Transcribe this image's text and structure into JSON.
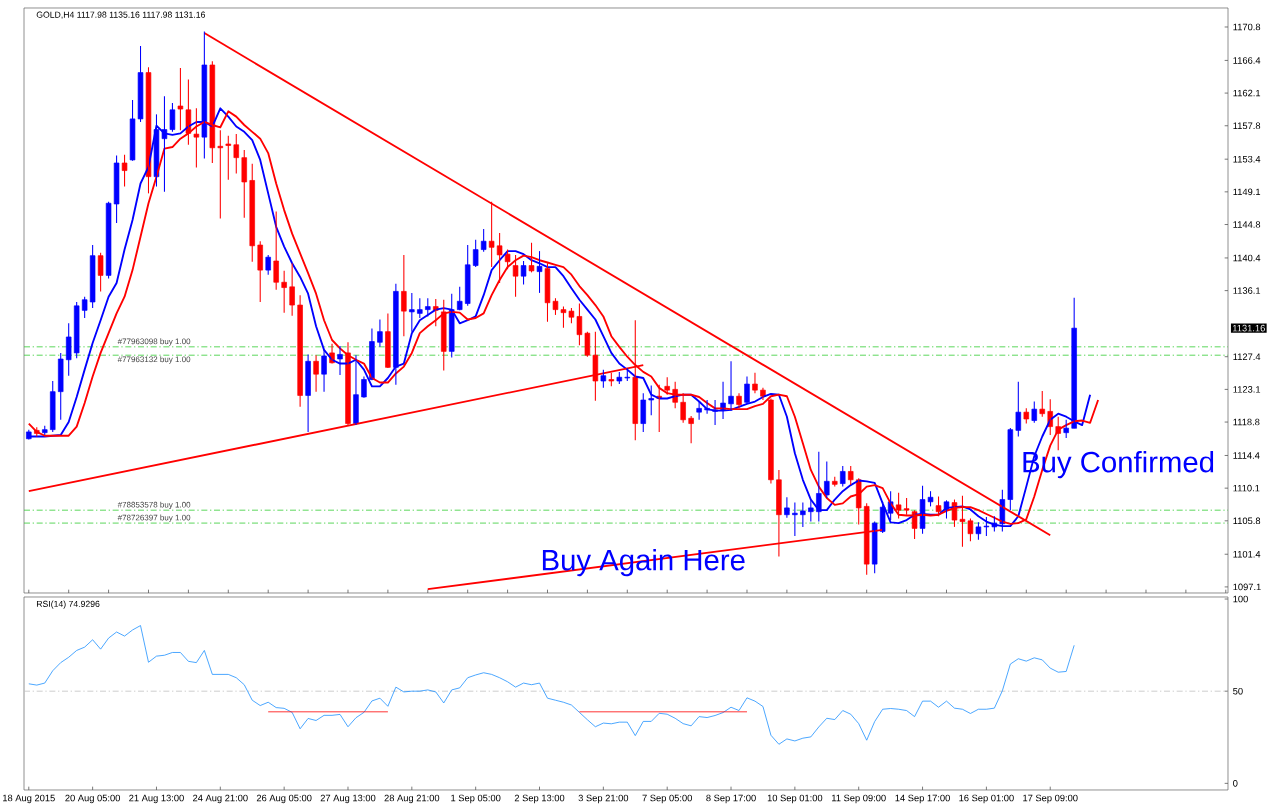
{
  "chart_data": [
    {
      "type": "candlestick",
      "title": "GOLD,H4 1117.98 1135.16 1117.98 1131.16",
      "categories": [
        null,
        null,
        null,
        null,
        null,
        null,
        null,
        null,
        null,
        null,
        null,
        null,
        null,
        null,
        null,
        null,
        null,
        null,
        null,
        null,
        null,
        null,
        null,
        null,
        null,
        null,
        null,
        null,
        null,
        null,
        null,
        null,
        null,
        null,
        null,
        null,
        null,
        null,
        null,
        null,
        null,
        null,
        null,
        null,
        null,
        null,
        null,
        null,
        null,
        null,
        null,
        null,
        null,
        null,
        null,
        null,
        null,
        null,
        null,
        null,
        null,
        null,
        null,
        null,
        null,
        null,
        null,
        null,
        null,
        null,
        null,
        null,
        null,
        null,
        null,
        null,
        null,
        null,
        null,
        null,
        null,
        null,
        null,
        null,
        null,
        null,
        null,
        null,
        null,
        null,
        null,
        null,
        null,
        null,
        null,
        null,
        null,
        null,
        null,
        null,
        null,
        null,
        null,
        null,
        null,
        null,
        null,
        null,
        null,
        null,
        null,
        null,
        null,
        null,
        null,
        null,
        null,
        null,
        null,
        null,
        null,
        null,
        null,
        null,
        null,
        null,
        null,
        null,
        null,
        null,
        null,
        null,
        null,
        null,
        null
      ],
      "ohlc": [
        [
          1116.6,
          1117.8,
          1116.5,
          1117.5
        ],
        [
          1117.7,
          1118.1,
          1116.9,
          1117.3
        ],
        [
          1117.4,
          1118.3,
          1117.1,
          1117.8
        ],
        [
          1117.8,
          1124.2,
          1117.5,
          1122.8
        ],
        [
          1122.8,
          1127.9,
          1119.1,
          1127.1
        ],
        [
          1127.0,
          1131.8,
          1124.9,
          1130.0
        ],
        [
          1127.9,
          1134.6,
          1127.2,
          1134.1
        ],
        [
          1133.5,
          1135.3,
          1132.5,
          1134.9
        ],
        [
          1134.6,
          1142.1,
          1133.8,
          1140.7
        ],
        [
          1140.7,
          1141.1,
          1136.0,
          1138.1
        ],
        [
          1138.1,
          1147.8,
          1137.7,
          1147.6
        ],
        [
          1147.5,
          1153.9,
          1145.0,
          1152.9
        ],
        [
          1152.9,
          1154.0,
          1149.8,
          1151.9
        ],
        [
          1153.3,
          1161.2,
          1153.2,
          1158.7
        ],
        [
          1158.7,
          1168.3,
          1158.3,
          1164.8
        ],
        [
          1164.8,
          1165.5,
          1148.9,
          1151.1
        ],
        [
          1151.1,
          1159.3,
          1149.8,
          1157.3
        ],
        [
          1156.1,
          1161.7,
          1149.1,
          1157.3
        ],
        [
          1157.3,
          1160.8,
          1157.0,
          1159.9
        ],
        [
          1160.4,
          1165.4,
          1157.2,
          1160.0
        ],
        [
          1159.9,
          1163.9,
          1155.3,
          1156.8
        ],
        [
          1156.7,
          1160.1,
          1152.3,
          1156.3
        ],
        [
          1156.3,
          1170.2,
          1153.5,
          1165.8
        ],
        [
          1165.8,
          1166.3,
          1152.9,
          1154.9
        ],
        [
          1155.1,
          1157.2,
          1145.6,
          1154.9
        ],
        [
          1155.4,
          1156.5,
          1150.7,
          1155.2
        ],
        [
          1155.3,
          1156.7,
          1151.5,
          1153.6
        ],
        [
          1153.6,
          1154.6,
          1145.7,
          1150.4
        ],
        [
          1150.6,
          1152.8,
          1139.9,
          1142.0
        ],
        [
          1142.1,
          1142.6,
          1134.6,
          1138.8
        ],
        [
          1138.8,
          1140.8,
          1138.2,
          1140.5
        ],
        [
          1140.0,
          1146.5,
          1136.2,
          1137.2
        ],
        [
          1137.2,
          1138.7,
          1133.2,
          1136.5
        ],
        [
          1136.6,
          1139.7,
          1132.8,
          1134.2
        ],
        [
          1134.2,
          1135.5,
          1120.8,
          1122.3
        ],
        [
          1122.3,
          1127.7,
          1117.5,
          1126.8
        ],
        [
          1126.8,
          1127.6,
          1122.8,
          1125.1
        ],
        [
          1125.1,
          1128.3,
          1122.8,
          1127.5
        ],
        [
          1127.9,
          1129.1,
          1126.5,
          1126.6
        ],
        [
          1127.1,
          1128.8,
          1125.0,
          1127.7
        ],
        [
          1127.9,
          1129.3,
          1118.4,
          1118.6
        ],
        [
          1118.6,
          1127.6,
          1118.4,
          1122.4
        ],
        [
          1122.1,
          1124.8,
          1122.0,
          1124.4
        ],
        [
          1124.4,
          1131.1,
          1124.3,
          1129.4
        ],
        [
          1129.3,
          1132.3,
          1128.7,
          1130.7
        ],
        [
          1130.7,
          1133.1,
          1125.9,
          1126.0
        ],
        [
          1126.0,
          1137.0,
          1123.7,
          1136.0
        ],
        [
          1136.0,
          1140.8,
          1130.1,
          1133.4
        ],
        [
          1133.3,
          1135.8,
          1130.7,
          1133.6
        ],
        [
          1133.1,
          1135.1,
          1132.5,
          1133.6
        ],
        [
          1133.6,
          1135.1,
          1132.7,
          1134.0
        ],
        [
          1134.0,
          1135.0,
          1131.4,
          1133.5
        ],
        [
          1133.3,
          1134.9,
          1125.6,
          1128.1
        ],
        [
          1128.1,
          1135.7,
          1127.3,
          1133.6
        ],
        [
          1133.6,
          1136.6,
          1133.5,
          1134.7
        ],
        [
          1134.4,
          1142.1,
          1134.1,
          1139.5
        ],
        [
          1139.4,
          1142.8,
          1139.2,
          1141.5
        ],
        [
          1141.5,
          1144.2,
          1141.2,
          1142.6
        ],
        [
          1142.6,
          1147.8,
          1139.2,
          1141.8
        ],
        [
          1142.0,
          1143.7,
          1137.1,
          1140.8
        ],
        [
          1140.9,
          1141.5,
          1138.9,
          1139.9
        ],
        [
          1139.4,
          1140.8,
          1135.3,
          1138.0
        ],
        [
          1138.0,
          1140.0,
          1136.9,
          1139.4
        ],
        [
          1139.4,
          1142.4,
          1138.5,
          1138.7
        ],
        [
          1138.6,
          1141.3,
          1135.8,
          1139.3
        ],
        [
          1139.0,
          1139.7,
          1132.0,
          1134.5
        ],
        [
          1134.7,
          1135.1,
          1132.9,
          1133.6
        ],
        [
          1133.6,
          1134.0,
          1131.2,
          1133.2
        ],
        [
          1133.4,
          1133.8,
          1131.8,
          1132.6
        ],
        [
          1132.7,
          1134.4,
          1128.9,
          1130.3
        ],
        [
          1130.5,
          1130.7,
          1127.4,
          1127.6
        ],
        [
          1127.6,
          1130.7,
          1121.6,
          1124.2
        ],
        [
          1124.2,
          1125.7,
          1123.3,
          1124.9
        ],
        [
          1124.4,
          1125.3,
          1123.5,
          1124.2
        ],
        [
          1124.2,
          1125.4,
          1123.8,
          1124.7
        ],
        [
          1124.6,
          1125.9,
          1124.2,
          1124.7
        ],
        [
          1124.7,
          1132.2,
          1116.4,
          1118.6
        ],
        [
          1118.6,
          1122.6,
          1117.5,
          1121.7
        ],
        [
          1121.7,
          1123.6,
          1119.7,
          1121.9
        ],
        [
          1122.2,
          1123.7,
          1117.5,
          1121.9
        ],
        [
          1123.5,
          1124.7,
          1122.4,
          1123.0
        ],
        [
          1123.1,
          1124.1,
          1120.6,
          1121.4
        ],
        [
          1121.4,
          1122.6,
          1118.7,
          1119.1
        ],
        [
          1119.3,
          1119.6,
          1116.0,
          1118.6
        ],
        [
          1120.1,
          1121.5,
          1119.1,
          1120.6
        ],
        [
          1120.4,
          1121.7,
          1119.9,
          1120.6
        ],
        [
          1120.2,
          1121.7,
          1118.4,
          1120.4
        ],
        [
          1120.4,
          1124.1,
          1119.2,
          1121.3
        ],
        [
          1121.2,
          1126.8,
          1120.3,
          1122.2
        ],
        [
          1122.2,
          1122.6,
          1120.6,
          1121.1
        ],
        [
          1121.4,
          1124.8,
          1121.3,
          1123.8
        ],
        [
          1123.8,
          1125.3,
          1122.6,
          1123.0
        ],
        [
          1123.0,
          1123.3,
          1121.7,
          1122.2
        ],
        [
          1121.7,
          1121.9,
          1110.7,
          1111.2
        ],
        [
          1111.2,
          1112.5,
          1101.1,
          1106.6
        ],
        [
          1106.6,
          1108.9,
          1106.2,
          1107.5
        ],
        [
          1106.6,
          1108.2,
          1103.8,
          1106.8
        ],
        [
          1106.6,
          1108.2,
          1105.0,
          1107.1
        ],
        [
          1107.0,
          1108.6,
          1105.7,
          1107.5
        ],
        [
          1107.0,
          1114.9,
          1105.7,
          1109.4
        ],
        [
          1109.2,
          1113.6,
          1108.8,
          1111.0
        ],
        [
          1111.0,
          1111.6,
          1110.3,
          1110.6
        ],
        [
          1110.7,
          1113.0,
          1110.3,
          1112.3
        ],
        [
          1112.3,
          1113.0,
          1110.5,
          1111.2
        ],
        [
          1111.2,
          1111.4,
          1105.3,
          1107.5
        ],
        [
          1107.7,
          1108.1,
          1098.7,
          1100.1
        ],
        [
          1100.1,
          1105.7,
          1098.9,
          1105.5
        ],
        [
          1104.4,
          1108.3,
          1104.2,
          1107.6
        ],
        [
          1106.8,
          1109.7,
          1105.9,
          1108.3
        ],
        [
          1107.9,
          1109.5,
          1106.1,
          1107.2
        ],
        [
          1107.4,
          1108.8,
          1106.6,
          1107.2
        ],
        [
          1107.0,
          1107.2,
          1103.4,
          1104.8
        ],
        [
          1104.8,
          1110.4,
          1104.1,
          1108.6
        ],
        [
          1108.3,
          1109.7,
          1107.7,
          1108.9
        ],
        [
          1107.8,
          1109.0,
          1106.4,
          1107.0
        ],
        [
          1107.2,
          1108.5,
          1106.1,
          1108.3
        ],
        [
          1108.2,
          1108.6,
          1105.0,
          1105.9
        ],
        [
          1106.0,
          1109.1,
          1102.4,
          1105.7
        ],
        [
          1105.8,
          1106.1,
          1103.1,
          1104.1
        ],
        [
          1104.1,
          1105.6,
          1103.3,
          1105.0
        ],
        [
          1105.0,
          1106.3,
          1103.8,
          1105.1
        ],
        [
          1105.0,
          1106.4,
          1104.4,
          1105.5
        ],
        [
          1105.4,
          1109.9,
          1104.4,
          1108.6
        ],
        [
          1108.6,
          1118.0,
          1107.2,
          1117.8
        ],
        [
          1117.7,
          1124.1,
          1116.9,
          1120.1
        ],
        [
          1120.1,
          1120.6,
          1118.6,
          1119.2
        ],
        [
          1119.0,
          1121.5,
          1118.7,
          1120.5
        ],
        [
          1120.5,
          1122.9,
          1119.5,
          1119.9
        ],
        [
          1120.2,
          1121.8,
          1117.1,
          1118.2
        ],
        [
          1118.2,
          1119.5,
          1115.1,
          1117.3
        ],
        [
          1117.4,
          1119.1,
          1116.7,
          1118.0
        ],
        [
          1117.98,
          1135.16,
          1117.98,
          1131.16
        ],
        null,
        null,
        null
      ],
      "series": [
        {
          "type": "line",
          "color": "#0000ff",
          "values": [
            1116.9,
            1116.9,
            1116.9,
            1117.0,
            1117.1,
            1118.8,
            1122.1,
            1125.7,
            1129.2,
            1132.2,
            1135.3,
            1137.1,
            1141.5,
            1145.4,
            1150.2,
            1152.4,
            1157.8,
            1156.8,
            1156.6,
            1156.8,
            1157.7,
            1158.3,
            1158.3,
            1157.7,
            1160.1,
            1159.0,
            1157.7,
            1157.0,
            1155.9,
            1153.3,
            1148.9,
            1144.5,
            1141.9,
            1139.7,
            1137.9,
            1135.7,
            1131.4,
            1128.3,
            1127.0,
            1126.5,
            1126.5,
            1127.0,
            1125.7,
            1123.5,
            1123.5,
            1124.6,
            1126.1,
            1126.5,
            1130.5,
            1132.2,
            1132.9,
            1133.6,
            1133.8,
            1133.6,
            1131.8,
            1132.2,
            1132.7,
            1135.5,
            1138.8,
            1140.1,
            1141.3,
            1141.3,
            1140.9,
            1140.1,
            1139.7,
            1139.2,
            1139.2,
            1138.0,
            1136.4,
            1134.9,
            1133.6,
            1132.3,
            1130.1,
            1127.9,
            1126.5,
            1125.7,
            1124.8,
            1124.6,
            1122.4,
            1121.9,
            1121.9,
            1122.2,
            1122.4,
            1122.4,
            1121.5,
            1120.5,
            1120.3,
            1120.3,
            1120.4,
            1120.8,
            1121.2,
            1121.5,
            1122.1,
            1122.5,
            1122.4,
            1119.5,
            1114.7,
            1111.2,
            1108.6,
            1107.2,
            1107.2,
            1108.6,
            1109.7,
            1110.5,
            1111.1,
            1111.0,
            1110.8,
            1108.1,
            1105.6,
            1105.5,
            1105.9,
            1106.6,
            1106.7,
            1106.6,
            1106.6,
            1107.5,
            1107.6,
            1107.7,
            1107.3,
            1106.4,
            1105.7,
            1105.3,
            1105.1,
            1105.1,
            1106.4,
            1110.3,
            1114.3,
            1116.9,
            1119.1,
            1119.9,
            1119.5,
            1118.9,
            1118.4,
            1122.4,
            null
          ]
        },
        {
          "type": "line",
          "color": "#ff0000",
          "values": [
            1118.6,
            1117.5,
            1117.0,
            1117.0,
            1117.0,
            1117.0,
            1118.2,
            1121.3,
            1124.8,
            1127.9,
            1130.5,
            1133.1,
            1135.3,
            1138.8,
            1143.2,
            1147.6,
            1151.1,
            1154.8,
            1155.0,
            1156.1,
            1156.8,
            1157.7,
            1158.3,
            1157.9,
            1157.6,
            1159.7,
            1159.0,
            1157.9,
            1157.0,
            1156.1,
            1154.2,
            1150.2,
            1146.7,
            1143.6,
            1141.0,
            1138.4,
            1135.7,
            1132.2,
            1129.6,
            1128.5,
            1127.6,
            1127.0,
            1126.5,
            1124.6,
            1124.0,
            1124.0,
            1125.2,
            1126.1,
            1127.9,
            1130.5,
            1131.4,
            1132.2,
            1133.1,
            1133.3,
            1133.2,
            1132.3,
            1132.5,
            1133.1,
            1135.5,
            1137.5,
            1139.2,
            1140.1,
            1140.7,
            1140.5,
            1140.1,
            1139.8,
            1139.5,
            1139.2,
            1138.2,
            1136.7,
            1135.5,
            1134.2,
            1132.7,
            1130.1,
            1128.7,
            1127.4,
            1126.3,
            1125.4,
            1124.8,
            1123.3,
            1122.6,
            1122.4,
            1122.4,
            1122.4,
            1122.1,
            1121.3,
            1120.6,
            1120.6,
            1120.5,
            1120.5,
            1120.5,
            1120.9,
            1121.2,
            1122.2,
            1122.4,
            1122.2,
            1119.5,
            1116.0,
            1112.5,
            1110.3,
            1108.8,
            1107.9,
            1108.1,
            1109.0,
            1109.3,
            1110.3,
            1110.5,
            1110.1,
            1108.1,
            1106.6,
            1106.5,
            1106.5,
            1106.6,
            1106.5,
            1106.6,
            1107.1,
            1107.5,
            1107.6,
            1107.6,
            1107.2,
            1106.7,
            1106.2,
            1105.7,
            1105.4,
            1105.5,
            1106.0,
            1109.0,
            1112.5,
            1115.7,
            1117.8,
            1118.4,
            1118.9,
            1119.0,
            1118.7,
            1121.7
          ]
        },
        {
          "type": "line",
          "color": "#ff0000",
          "values": [
            null,
            null,
            null,
            null,
            null,
            null,
            null,
            null,
            null,
            null,
            null,
            null,
            null,
            null,
            null,
            null,
            null,
            null,
            null,
            null,
            null,
            null,
            1170.0,
            null,
            null,
            null,
            null,
            null,
            null,
            null,
            null,
            null,
            null,
            null,
            null,
            null,
            null,
            null,
            null,
            null,
            null,
            null,
            null,
            null,
            null,
            null,
            null,
            null,
            null,
            null,
            null,
            null,
            null,
            null,
            null,
            null,
            null,
            null,
            null,
            null,
            null,
            null,
            null,
            null,
            null,
            null,
            null,
            null,
            null,
            null,
            null,
            null,
            null,
            null,
            null,
            null,
            null,
            null,
            null,
            null,
            null,
            null,
            null,
            null,
            null,
            null,
            null,
            null,
            null,
            null,
            null,
            null,
            null,
            null,
            null,
            null,
            null,
            null,
            null,
            null,
            null,
            null,
            null,
            null,
            null,
            null,
            null,
            null,
            null,
            null,
            null,
            null,
            null,
            null,
            null,
            null,
            null,
            null,
            null,
            null,
            null,
            null,
            null,
            null,
            null,
            null,
            null,
            null,
            1103.9,
            null,
            null,
            null,
            null,
            null,
            null
          ]
        },
        {
          "type": "line",
          "color": "#ff0000",
          "values": [
            1109.7,
            null,
            null,
            null,
            null,
            null,
            null,
            null,
            null,
            null,
            null,
            null,
            null,
            null,
            null,
            null,
            null,
            null,
            null,
            null,
            null,
            null,
            null,
            null,
            null,
            null,
            null,
            null,
            null,
            null,
            null,
            null,
            null,
            null,
            null,
            null,
            null,
            null,
            null,
            null,
            null,
            null,
            null,
            null,
            null,
            null,
            null,
            null,
            null,
            null,
            null,
            null,
            null,
            null,
            null,
            null,
            null,
            null,
            null,
            null,
            null,
            null,
            null,
            null,
            null,
            null,
            null,
            null,
            null,
            null,
            null,
            null,
            null,
            null,
            null,
            null,
            null,
            1126.3,
            null,
            null,
            null,
            null,
            null,
            null,
            null,
            null,
            null,
            null,
            null,
            null,
            null,
            null,
            null,
            null,
            null,
            null,
            null,
            null,
            null,
            null,
            null,
            null,
            null,
            null,
            null,
            null,
            null,
            null,
            null,
            null,
            null,
            null,
            null,
            null,
            null,
            null,
            null,
            null,
            null,
            null,
            null,
            null,
            null,
            null,
            null,
            null,
            null,
            null,
            null,
            null,
            null,
            null,
            null,
            null,
            null
          ]
        },
        {
          "type": "line",
          "color": "#ff0000",
          "values": [
            null,
            null,
            null,
            null,
            null,
            null,
            null,
            null,
            null,
            null,
            null,
            null,
            null,
            null,
            null,
            null,
            null,
            null,
            null,
            null,
            null,
            null,
            null,
            null,
            null,
            null,
            null,
            null,
            null,
            null,
            null,
            null,
            null,
            null,
            null,
            null,
            null,
            null,
            null,
            null,
            null,
            null,
            null,
            null,
            null,
            null,
            null,
            null,
            null,
            null,
            1096.8,
            null,
            null,
            null,
            null,
            null,
            null,
            null,
            null,
            null,
            null,
            null,
            null,
            null,
            null,
            null,
            null,
            null,
            null,
            null,
            null,
            null,
            null,
            null,
            null,
            null,
            null,
            null,
            null,
            null,
            null,
            null,
            null,
            null,
            null,
            null,
            null,
            null,
            null,
            null,
            null,
            null,
            null,
            null,
            null,
            null,
            null,
            null,
            null,
            null,
            null,
            null,
            null,
            null,
            null,
            null,
            null,
            1104.6,
            null,
            null,
            null,
            null,
            null,
            null,
            null,
            null,
            null,
            null,
            null,
            null,
            null,
            null,
            null,
            null,
            null,
            null,
            null,
            null,
            null,
            null,
            null,
            null,
            null,
            null,
            null
          ]
        }
      ],
      "ylim": [
        1096.3,
        1173.3
      ],
      "yticks": [
        1097.1,
        1101.4,
        1105.8,
        1110.1,
        1114.4,
        1118.8,
        1123.1,
        1127.4,
        1136.1,
        1140.4,
        1144.8,
        1149.1,
        1153.4,
        1157.8,
        1162.1,
        1166.4,
        1170.8
      ],
      "ref_lines": [
        {
          "axis": "y",
          "value": 1128.7,
          "label": "#77963098 buy 1.00",
          "color": "#32cd32",
          "line_style": "dashed"
        },
        {
          "axis": "y",
          "value": 1127.6,
          "label": "#77963132 buy 1.00",
          "color": "#32cd32",
          "line_style": "dashed"
        },
        {
          "axis": "y",
          "value": 1107.2,
          "label": "#78853578 buy 1.00",
          "color": "#32cd32",
          "line_style": "dashed"
        },
        {
          "axis": "y",
          "value": 1105.5,
          "label": "#78726397 buy 1.00",
          "color": "#32cd32",
          "line_style": "dashed"
        }
      ],
      "annotations": [
        "Buy Again Here",
        "Buy Confirmed",
        "1131.16"
      ],
      "tick_labels": "y"
    },
    {
      "type": "line",
      "title": "RSI(14) 74.9296",
      "categories": [
        "18 Aug 2015",
        null,
        null,
        null,
        null,
        null,
        null,
        null,
        "20 Aug 05:00",
        null,
        null,
        null,
        null,
        null,
        null,
        null,
        "21 Aug 13:00",
        null,
        null,
        null,
        null,
        null,
        null,
        null,
        "24 Aug 21:00",
        null,
        null,
        null,
        null,
        null,
        null,
        null,
        "26 Aug 05:00",
        null,
        null,
        null,
        null,
        null,
        null,
        null,
        "27 Aug 13:00",
        null,
        null,
        null,
        null,
        null,
        null,
        null,
        "28 Aug 21:00",
        null,
        null,
        null,
        null,
        null,
        null,
        null,
        "1 Sep 05:00",
        null,
        null,
        null,
        null,
        null,
        null,
        null,
        "2 Sep 13:00",
        null,
        null,
        null,
        null,
        null,
        null,
        null,
        "3 Sep 21:00",
        null,
        null,
        null,
        null,
        null,
        null,
        null,
        "7 Sep 05:00",
        null,
        null,
        null,
        null,
        null,
        null,
        null,
        "8 Sep 17:00",
        null,
        null,
        null,
        null,
        null,
        null,
        null,
        "10 Sep 01:00",
        null,
        null,
        null,
        null,
        null,
        null,
        null,
        "11 Sep 09:00",
        null,
        null,
        null,
        null,
        null,
        null,
        null,
        "14 Sep 17:00",
        null,
        null,
        null,
        null,
        null,
        null,
        null,
        "16 Sep 01:00",
        null,
        null,
        null,
        null,
        null,
        null,
        null,
        "17 Sep 09:00",
        null,
        null,
        null,
        null,
        null,
        null
      ],
      "series": [
        {
          "color": "#1e90ff",
          "values": [
            54.0,
            53.3,
            54.4,
            61.1,
            65.5,
            68.4,
            72.1,
            73.9,
            77.9,
            72.8,
            78.8,
            82.1,
            79.9,
            83.2,
            85.6,
            65.7,
            69.0,
            69.5,
            71.0,
            71.0,
            66.2,
            65.5,
            72.1,
            59.1,
            59.1,
            59.1,
            57.3,
            53.5,
            45.1,
            42.2,
            44.0,
            41.1,
            40.7,
            38.5,
            29.6,
            35.2,
            34.1,
            36.9,
            36.9,
            37.4,
            30.7,
            35.6,
            38.5,
            44.7,
            46.2,
            41.8,
            52.2,
            49.6,
            50.0,
            50.0,
            50.7,
            49.6,
            43.6,
            50.7,
            51.8,
            57.3,
            58.8,
            60.0,
            59.1,
            57.3,
            55.1,
            52.2,
            54.4,
            53.5,
            54.4,
            46.2,
            45.1,
            44.0,
            42.5,
            38.5,
            34.5,
            30.7,
            32.7,
            32.3,
            33.2,
            33.2,
            25.9,
            33.6,
            33.6,
            38.0,
            37.5,
            35.3,
            32.4,
            31.2,
            36.2,
            35.7,
            36.8,
            38.4,
            41.3,
            39.5,
            46.4,
            44.6,
            41.7,
            26.1,
            21.2,
            24.1,
            23.0,
            24.5,
            25.2,
            30.6,
            35.3,
            34.6,
            39.5,
            37.5,
            32.4,
            23.4,
            33.5,
            40.2,
            40.6,
            40.2,
            39.5,
            36.2,
            44.6,
            44.6,
            41.3,
            44.6,
            40.8,
            40.2,
            37.9,
            40.2,
            40.2,
            40.8,
            50.2,
            64.7,
            67.6,
            66.3,
            68.1,
            67.0,
            62.5,
            60.3,
            60.7,
            74.9,
            null,
            null,
            null
          ]
        },
        {
          "color": "#ff0000",
          "values": [
            null,
            null,
            null,
            null,
            null,
            null,
            null,
            null,
            null,
            null,
            null,
            null,
            null,
            null,
            null,
            null,
            null,
            null,
            null,
            null,
            null,
            null,
            null,
            null,
            null,
            null,
            null,
            null,
            null,
            null,
            38.8,
            null,
            null,
            null,
            null,
            null,
            null,
            null,
            null,
            null,
            null,
            null,
            null,
            null,
            null,
            38.8,
            null,
            null,
            null,
            null,
            null,
            null,
            null,
            null,
            null,
            null,
            null,
            null,
            null,
            null,
            null,
            null,
            null,
            null,
            null,
            null,
            null,
            null,
            null,
            null,
            null,
            null,
            null,
            null,
            null,
            null,
            null,
            null,
            null,
            null,
            null,
            null,
            null,
            null,
            null,
            null,
            null,
            null,
            null,
            null,
            null,
            null,
            null,
            null,
            null,
            null,
            null,
            null,
            null,
            null,
            null,
            null,
            null,
            null,
            null,
            null,
            null,
            null,
            null,
            null,
            null,
            null,
            null,
            null,
            null,
            null,
            null,
            null,
            null,
            null,
            null,
            null,
            null,
            null,
            null,
            null,
            null,
            null,
            null,
            null,
            null,
            null,
            null,
            null,
            null
          ]
        },
        {
          "color": "#ff0000",
          "values": [
            null,
            null,
            null,
            null,
            null,
            null,
            null,
            null,
            null,
            null,
            null,
            null,
            null,
            null,
            null,
            null,
            null,
            null,
            null,
            null,
            null,
            null,
            null,
            null,
            null,
            null,
            null,
            null,
            null,
            null,
            null,
            null,
            null,
            null,
            null,
            null,
            null,
            null,
            null,
            null,
            null,
            null,
            null,
            null,
            null,
            null,
            null,
            null,
            null,
            null,
            null,
            null,
            null,
            null,
            null,
            null,
            null,
            null,
            null,
            null,
            null,
            null,
            null,
            null,
            null,
            null,
            null,
            null,
            null,
            38.8,
            null,
            null,
            null,
            null,
            null,
            null,
            null,
            null,
            null,
            null,
            null,
            null,
            null,
            null,
            null,
            null,
            null,
            null,
            null,
            null,
            38.8,
            null,
            null,
            null,
            null,
            null,
            null,
            null,
            null,
            null,
            null,
            null,
            null,
            null,
            null,
            null,
            null,
            null,
            null,
            null,
            null,
            null,
            null,
            null,
            null,
            null,
            null,
            null,
            null,
            null,
            null,
            null,
            null,
            null,
            null,
            null,
            null,
            null,
            null,
            null,
            null,
            null,
            null,
            null,
            null
          ]
        }
      ],
      "ylim": [
        -3.6,
        101.1
      ],
      "yticks": [
        0,
        50,
        100
      ],
      "ref_lines": [
        {
          "axis": "y",
          "value": 50,
          "color": "#c0c0c0",
          "line_style": "dashed"
        }
      ]
    }
  ]
}
